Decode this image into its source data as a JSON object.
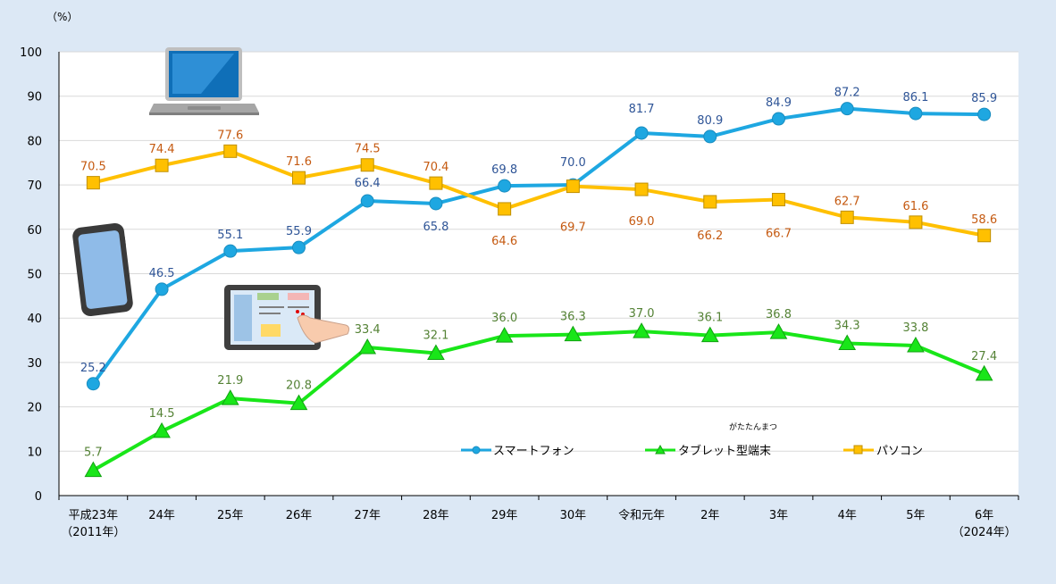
{
  "chart_data": {
    "type": "line",
    "unit_label": "（%）",
    "ylim": [
      0,
      100
    ],
    "y_ticks": [
      "0",
      "10",
      "20",
      "30",
      "40",
      "50",
      "60",
      "70",
      "80",
      "90",
      "100"
    ],
    "categories": [
      "平成23年",
      "24年",
      "25年",
      "26年",
      "27年",
      "28年",
      "29年",
      "30年",
      "令和元年",
      "2年",
      "3年",
      "4年",
      "5年",
      "6年"
    ],
    "category_sublabels": [
      "（2011年）",
      "",
      "",
      "",
      "",
      "",
      "",
      "",
      "",
      "",
      "",
      "",
      "",
      "（2024年）"
    ],
    "grid": true,
    "legend_position": "bottom-right",
    "legend_ruby": "がたたんまつ",
    "series": [
      {
        "name": "スマートフォン",
        "color": "#1ea7e1",
        "label_color": "#2f5597",
        "marker": "circle",
        "values": [
          25.2,
          46.5,
          55.1,
          55.9,
          66.4,
          65.8,
          69.8,
          70.0,
          81.7,
          80.9,
          84.9,
          87.2,
          86.1,
          85.9
        ],
        "labels": [
          "25.2",
          "46.5",
          "55.1",
          "55.9",
          "66.4",
          "65.8",
          "69.8",
          "70.0",
          "81.7",
          "80.9",
          "84.9",
          "87.2",
          "86.1",
          "85.9"
        ]
      },
      {
        "name": "タブレット型端末",
        "color": "#19e619",
        "label_color": "#548235",
        "marker": "triangle",
        "values": [
          5.7,
          14.5,
          21.9,
          20.8,
          33.4,
          32.1,
          36.0,
          36.3,
          37.0,
          36.1,
          36.8,
          34.3,
          33.8,
          27.4
        ],
        "labels": [
          "5.7",
          "14.5",
          "21.9",
          "20.8",
          "33.4",
          "32.1",
          "36.0",
          "36.3",
          "37.0",
          "36.1",
          "36.8",
          "34.3",
          "33.8",
          "27.4"
        ]
      },
      {
        "name": "パソコン",
        "color": "#ffc000",
        "label_color": "#c55a11",
        "marker": "square",
        "values": [
          70.5,
          74.4,
          77.6,
          71.6,
          74.5,
          70.4,
          64.6,
          69.7,
          69.0,
          66.2,
          66.7,
          62.7,
          61.6,
          58.6
        ],
        "labels": [
          "70.5",
          "74.4",
          "77.6",
          "71.6",
          "74.5",
          "70.4",
          "64.6",
          "69.7",
          "69.0",
          "66.2",
          "66.7",
          "62.7",
          "61.6",
          "58.6"
        ]
      }
    ],
    "illustrations": [
      "laptop-icon",
      "smartphone-icon",
      "tablet-icon"
    ]
  }
}
